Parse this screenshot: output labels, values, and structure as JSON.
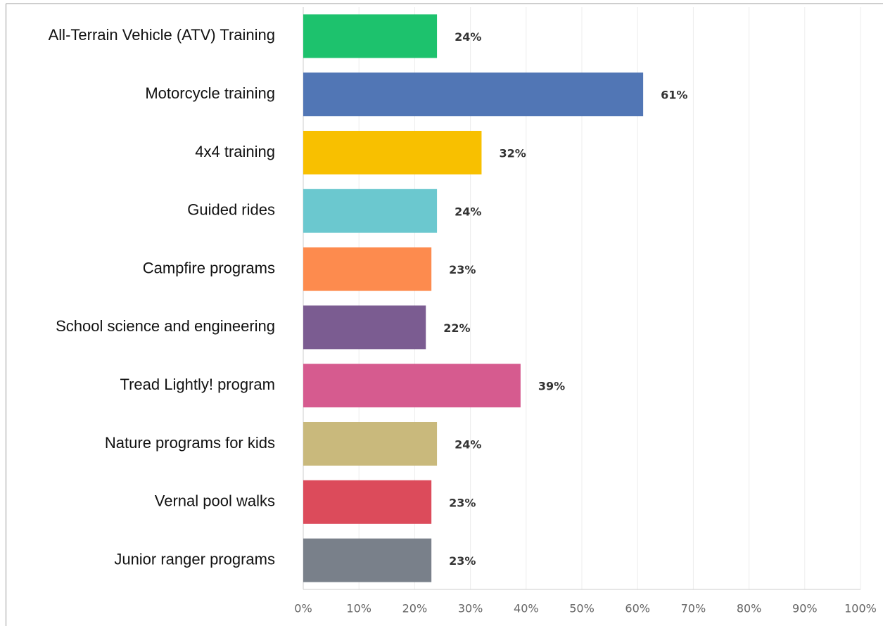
{
  "chart_data": {
    "type": "hbar",
    "categories": [
      "All-Terrain Vehicle (ATV) Training",
      "Motorcycle training",
      "4x4 training",
      "Guided rides",
      "Campfire programs",
      "School science and engineering",
      "Tread Lightly! program",
      "Nature programs for kids",
      "Vernal pool walks",
      "Junior ranger programs"
    ],
    "values": [
      24,
      61,
      32,
      24,
      23,
      22,
      39,
      24,
      23,
      23
    ],
    "value_labels": [
      "24%",
      "61%",
      "32%",
      "24%",
      "23%",
      "22%",
      "39%",
      "24%",
      "23%",
      "23%"
    ],
    "colors": [
      "#1dc26d",
      "#5176b5",
      "#f8c000",
      "#6bc8cf",
      "#fd8b4e",
      "#7b5c91",
      "#d65b8f",
      "#c9b97c",
      "#dc4b5b",
      "#79808a"
    ],
    "xlim": [
      0,
      100
    ],
    "xticks": [
      {
        "value": 0,
        "label": "0%"
      },
      {
        "value": 10,
        "label": "10%"
      },
      {
        "value": 20,
        "label": "20%"
      },
      {
        "value": 30,
        "label": "30%"
      },
      {
        "value": 40,
        "label": "40%"
      },
      {
        "value": 50,
        "label": "50%"
      },
      {
        "value": 60,
        "label": "60%"
      },
      {
        "value": 70,
        "label": "70%"
      },
      {
        "value": 80,
        "label": "80%"
      },
      {
        "value": 90,
        "label": "90%"
      },
      {
        "value": 100,
        "label": "100%"
      }
    ],
    "grid": true
  }
}
